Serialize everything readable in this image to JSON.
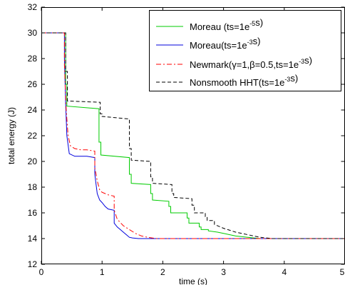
{
  "chart_data": {
    "type": "line",
    "title": "",
    "xlabel": "time (s)",
    "ylabel": "total energy (J)",
    "xlim": [
      0,
      5
    ],
    "ylim": [
      12,
      32
    ],
    "xticks": [
      "0",
      "1",
      "2",
      "3",
      "4",
      "5"
    ],
    "yticks": [
      "12",
      "14",
      "16",
      "18",
      "20",
      "22",
      "24",
      "26",
      "28",
      "30",
      "32"
    ],
    "grid": false,
    "legend_position": "top-right",
    "series": [
      {
        "name": "Moreau (ts=1e⁻⁵s)",
        "legend": [
          "Moreau (ts=1e",
          "-5",
          "s)"
        ],
        "color": "#00cc00",
        "dash": "solid",
        "x": [
          0,
          0.4,
          0.4,
          0.42,
          0.42,
          0.95,
          0.95,
          0.98,
          0.98,
          1.45,
          1.45,
          1.48,
          1.48,
          1.8,
          1.8,
          1.83,
          1.83,
          2.1,
          2.1,
          2.13,
          2.13,
          2.4,
          2.4,
          2.43,
          2.43,
          2.6,
          2.6,
          2.63,
          2.63,
          2.75,
          2.75,
          2.9,
          3.0,
          3.2,
          3.4,
          3.6,
          5.0
        ],
        "y": [
          30.0,
          30.0,
          26.0,
          26.0,
          24.3,
          24.1,
          21.5,
          21.5,
          20.5,
          20.3,
          19.0,
          19.0,
          18.3,
          18.2,
          17.5,
          17.5,
          17.0,
          16.9,
          16.5,
          16.5,
          16.0,
          16.0,
          15.6,
          15.6,
          15.2,
          15.2,
          14.9,
          14.9,
          14.7,
          14.7,
          14.6,
          14.5,
          14.4,
          14.2,
          14.1,
          14.0,
          14.0
        ]
      },
      {
        "name": "Moreau(ts=1e⁻³s)",
        "legend": [
          "Moreau(ts=1e",
          "-3",
          "s)"
        ],
        "color": "#0000dd",
        "dash": "solid",
        "x": [
          0,
          0.38,
          0.38,
          0.4,
          0.42,
          0.46,
          0.55,
          0.75,
          0.88,
          0.88,
          0.92,
          0.96,
          1.0,
          1.05,
          1.1,
          1.2,
          1.2,
          1.25,
          1.3,
          1.35,
          1.4,
          1.45,
          1.5,
          1.6,
          1.8,
          5.0
        ],
        "y": [
          30.0,
          30.0,
          28.0,
          24.5,
          22.0,
          20.6,
          20.4,
          20.4,
          20.3,
          19.0,
          17.5,
          17.0,
          16.8,
          16.5,
          16.3,
          16.2,
          15.2,
          14.9,
          14.7,
          14.5,
          14.3,
          14.1,
          14.05,
          14.0,
          14.0,
          14.0
        ]
      },
      {
        "name": "Newmark(γ=1,β=0.5,ts=1e⁻³s)",
        "legend": [
          "Newmark(",
          "γ",
          "=1,",
          "β",
          "=0.5,ts=1e",
          "-3",
          "s)"
        ],
        "color": "#ff0000",
        "dash": "dashdot",
        "x": [
          0,
          0.38,
          0.38,
          0.41,
          0.44,
          0.48,
          0.55,
          0.65,
          0.75,
          0.88,
          0.88,
          0.92,
          0.96,
          1.0,
          1.05,
          1.1,
          1.2,
          1.2,
          1.25,
          1.35,
          1.45,
          1.55,
          1.65,
          1.75,
          1.9,
          2.1,
          5.0
        ],
        "y": [
          30.0,
          30.0,
          27.5,
          24.0,
          22.0,
          21.2,
          21.0,
          20.9,
          20.9,
          20.8,
          19.5,
          18.5,
          17.8,
          17.6,
          17.5,
          17.4,
          17.3,
          16.2,
          15.5,
          15.0,
          14.7,
          14.4,
          14.2,
          14.1,
          14.0,
          14.0,
          14.0
        ]
      },
      {
        "name": "Nonsmooth HHT(ts=1e⁻³s)",
        "legend": [
          "Nonsmooth HHT(ts=1e",
          "-3",
          "s)"
        ],
        "color": "#000000",
        "dash": "dashed",
        "x": [
          0,
          0.4,
          0.4,
          0.43,
          0.43,
          0.97,
          0.97,
          1.0,
          1.0,
          1.45,
          1.45,
          1.48,
          1.48,
          1.8,
          1.8,
          1.83,
          1.83,
          2.15,
          2.15,
          2.18,
          2.18,
          2.48,
          2.48,
          2.52,
          2.52,
          2.7,
          2.7,
          2.73,
          2.73,
          2.85,
          2.85,
          3.0,
          3.2,
          3.4,
          3.6,
          3.8,
          5.0
        ],
        "y": [
          30.0,
          30.0,
          27.0,
          27.0,
          24.7,
          24.6,
          23.7,
          23.7,
          23.5,
          23.3,
          21.0,
          21.0,
          20.1,
          20.0,
          18.8,
          18.8,
          18.3,
          18.2,
          17.5,
          17.5,
          17.2,
          17.1,
          16.6,
          16.6,
          16.0,
          16.0,
          15.7,
          15.7,
          15.4,
          15.4,
          15.1,
          14.8,
          14.5,
          14.3,
          14.1,
          14.0,
          14.0
        ]
      }
    ]
  }
}
